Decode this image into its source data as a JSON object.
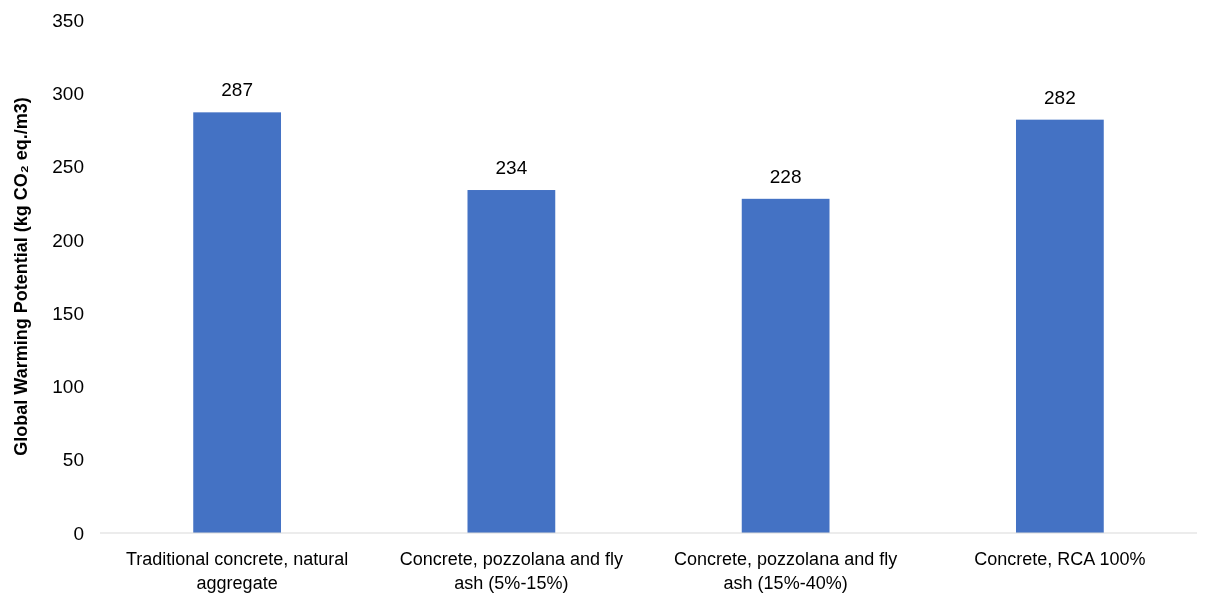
{
  "chart_data": {
    "type": "bar",
    "ylabel": "Global Warming Potential (kg CO₂ eq./m3)",
    "categories": [
      "Traditional concrete, natural aggregate",
      "Concrete, pozzolana and fly ash (5%-15%)",
      "Concrete, pozzolana and fly ash (15%-40%)",
      "Concrete, RCA 100%"
    ],
    "values": [
      287,
      234,
      228,
      282
    ],
    "color": "#4472c4",
    "ylim": [
      0,
      350
    ],
    "yticks": [
      0,
      50,
      100,
      150,
      200,
      250,
      300,
      350
    ],
    "grid": false,
    "data_labels": true
  }
}
